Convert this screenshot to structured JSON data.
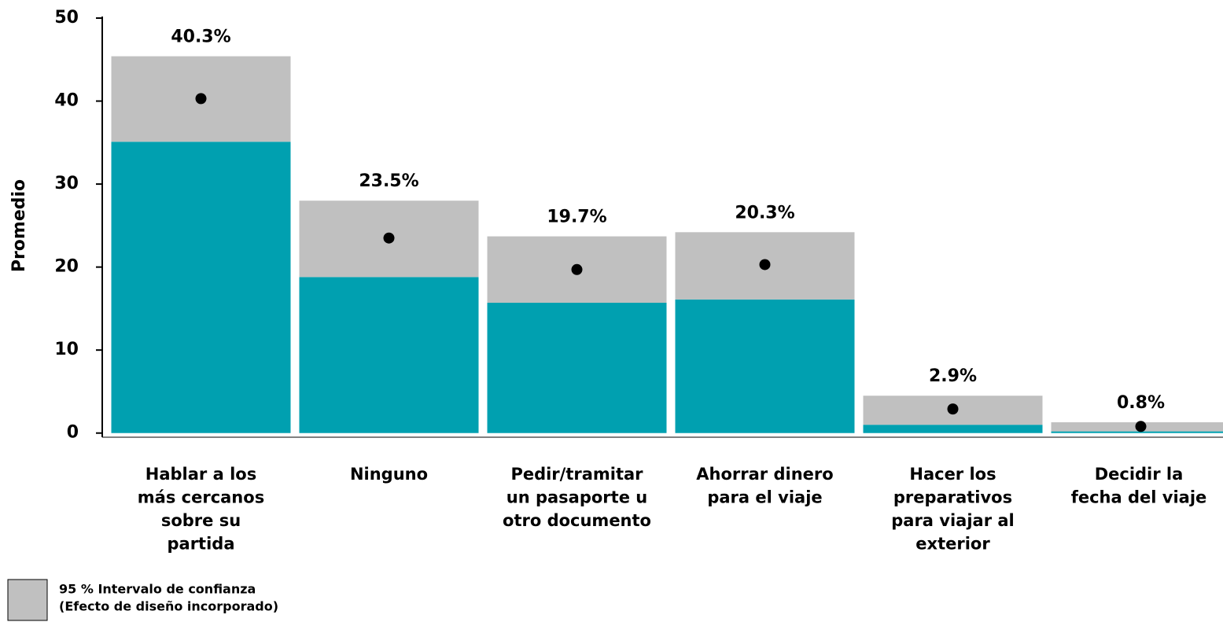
{
  "chart_data": {
    "type": "bar",
    "y_label": "Promedio",
    "categories": [
      [
        "Hablar a los",
        "más cercanos",
        "sobre su",
        "partida"
      ],
      [
        "Ninguno"
      ],
      [
        "Pedir/tramitar",
        "un pasaporte u",
        "otro documento"
      ],
      [
        "Ahorrar dinero",
        "para el viaje"
      ],
      [
        "Hacer los",
        "preparativos",
        "para viajar al",
        "exterior"
      ],
      [
        "Decidir la",
        "fecha del viaje"
      ]
    ],
    "values": [
      40.3,
      23.5,
      19.7,
      20.3,
      2.9,
      0.8
    ],
    "value_labels": [
      "40.3%",
      "23.5%",
      "19.7%",
      "20.3%",
      "2.9%",
      "0.8%"
    ],
    "color": "#00a0b0",
    "point_color": "#000000",
    "interval": {
      "label": [
        "95 % Intervalo de confianza",
        "(Efecto de diseño incorporado)"
      ],
      "color": "#c0c0c0",
      "low": [
        35.1,
        18.8,
        15.7,
        16.1,
        1.0,
        0.2
      ],
      "high": [
        45.4,
        28.0,
        23.7,
        24.2,
        4.5,
        1.3
      ]
    },
    "ylim": [
      -0.5,
      50
    ],
    "yticks": [
      0,
      10,
      20,
      30,
      40,
      50
    ]
  }
}
